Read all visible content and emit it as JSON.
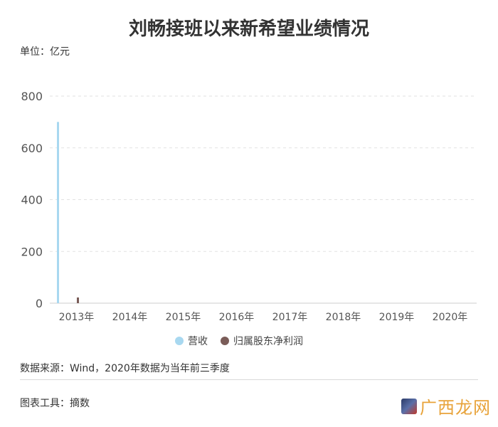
{
  "chart_data": {
    "type": "bar",
    "title": "刘畅接班以来新希望业绩情况",
    "unit_label": "单位：亿元",
    "categories": [
      "2013年",
      "2014年",
      "2015年",
      "2016年",
      "2017年",
      "2018年",
      "2019年",
      "2020年"
    ],
    "series": [
      {
        "name": "营收",
        "color": "#a8d8f0",
        "values": [
          700,
          null,
          null,
          null,
          null,
          null,
          null,
          null
        ]
      },
      {
        "name": "归属股东净利润",
        "color": "#7a5c58",
        "values": [
          22,
          null,
          null,
          null,
          null,
          null,
          null,
          null
        ]
      }
    ],
    "ylim": [
      0,
      800
    ],
    "yticks": [
      0,
      200,
      400,
      600,
      800
    ],
    "grid": true,
    "legend_position": "bottom"
  },
  "footer": {
    "source": "数据来源：Wind，2020年数据为当年前三季度",
    "tool": "图表工具：摘数"
  },
  "watermark": {
    "text": "广西龙网"
  }
}
